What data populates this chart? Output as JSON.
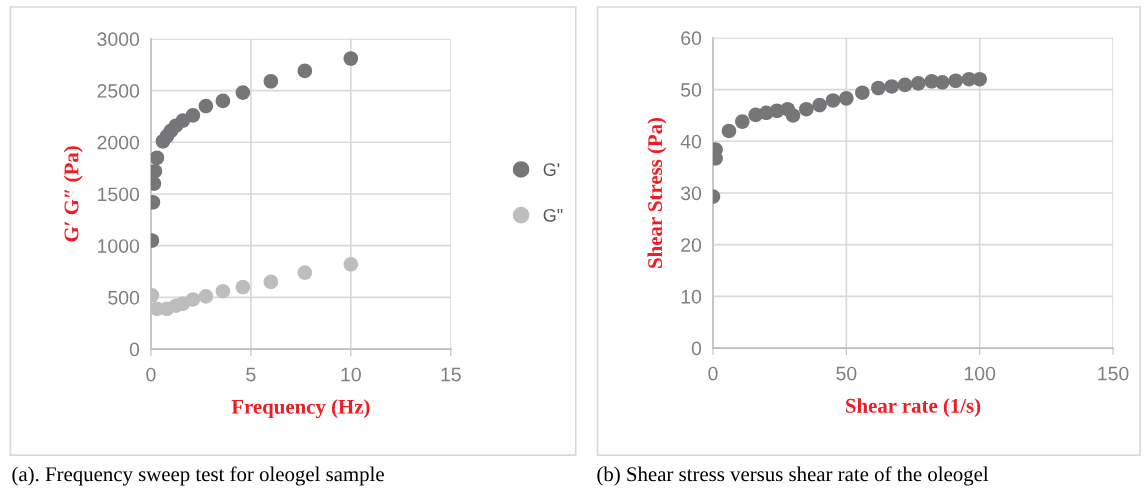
{
  "chart_data": [
    {
      "type": "scatter",
      "xlabel": "Frequency (Hz)",
      "ylabel": "G′ G″ (Pa)",
      "xlim": [
        0,
        15
      ],
      "ylim": [
        0,
        3000
      ],
      "xticks": [
        0,
        5,
        10,
        15
      ],
      "yticks": [
        0,
        500,
        1000,
        1500,
        2000,
        2500,
        3000
      ],
      "grid": true,
      "legend": "right",
      "marker": "circle",
      "annotations": [
        "(a). Frequency sweep test for oleogel sample"
      ],
      "series": [
        {
          "name": "G'",
          "color": "#767679",
          "x": [
            0.05,
            0.1,
            0.15,
            0.2,
            0.3,
            0.6,
            0.8,
            1.0,
            1.25,
            1.6,
            2.1,
            2.75,
            3.6,
            4.6,
            6.0,
            7.7,
            10
          ],
          "values": [
            1050,
            1420,
            1600,
            1720,
            1850,
            2010,
            2060,
            2110,
            2160,
            2210,
            2260,
            2350,
            2400,
            2480,
            2590,
            2690,
            2810
          ]
        },
        {
          "name": "G\"",
          "color": "#bdbdbf",
          "x": [
            0.05,
            0.3,
            0.8,
            1.25,
            1.6,
            2.1,
            2.75,
            3.6,
            4.6,
            6.0,
            7.7,
            10
          ],
          "values": [
            520,
            390,
            390,
            420,
            440,
            480,
            510,
            560,
            600,
            650,
            740,
            820
          ]
        }
      ]
    },
    {
      "type": "scatter",
      "xlabel": "Shear rate (1/s)",
      "ylabel": "Shear Stress (Pa)",
      "xlim": [
        0,
        150
      ],
      "ylim": [
        0,
        60
      ],
      "xticks": [
        0,
        50,
        100,
        150
      ],
      "yticks": [
        0,
        10,
        20,
        30,
        40,
        50,
        60
      ],
      "grid": true,
      "marker": "circle",
      "annotations": [
        "(b) Shear stress versus shear rate of the oleogel"
      ],
      "series": [
        {
          "color": "#767679",
          "x": [
            0,
            1,
            1,
            6,
            11,
            16,
            20,
            24,
            28,
            30,
            35,
            40,
            45,
            50,
            56,
            62,
            67,
            72,
            77,
            82,
            86,
            91,
            96,
            100
          ],
          "values": [
            29.3,
            36.7,
            38.4,
            42.0,
            43.8,
            45.1,
            45.5,
            45.9,
            46.2,
            45.0,
            46.2,
            47.0,
            47.9,
            48.3,
            49.4,
            50.3,
            50.6,
            50.9,
            51.2,
            51.6,
            51.4,
            51.7,
            52.0,
            52.0
          ]
        }
      ]
    }
  ]
}
